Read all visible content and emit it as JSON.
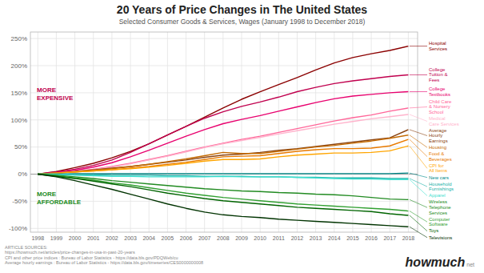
{
  "chart_data": {
    "type": "line",
    "title": "20 Years of Price Changes in The United States",
    "subtitle": "Selected Consumer Goods & Services, Wages (January 1998 to December 2018)",
    "x": [
      1998,
      1999,
      2000,
      2001,
      2002,
      2003,
      2004,
      2005,
      2006,
      2007,
      2008,
      2009,
      2010,
      2011,
      2012,
      2013,
      2014,
      2015,
      2016,
      2017,
      2018
    ],
    "xlim": [
      1997.6,
      2018.5
    ],
    "xticks": [
      1998,
      1999,
      2000,
      2001,
      2002,
      2003,
      2004,
      2005,
      2006,
      2007,
      2008,
      2009,
      2010,
      2011,
      2012,
      2013,
      2014,
      2015,
      2016,
      2017,
      2018
    ],
    "ylim": [
      -107,
      262
    ],
    "yticks": [
      {
        "value": -100,
        "label": "-100%"
      },
      {
        "value": -50,
        "label": "-50%"
      },
      {
        "value": 0,
        "label": "0%"
      },
      {
        "value": 50,
        "label": "50%"
      },
      {
        "value": 100,
        "label": "100%"
      },
      {
        "value": 150,
        "label": "150%"
      },
      {
        "value": 200,
        "label": "200%"
      },
      {
        "value": 250,
        "label": "250%"
      }
    ],
    "grid": true,
    "series": [
      {
        "name": "Hospital\nServices",
        "color": "#8B0000",
        "values": [
          0,
          5,
          12,
          20,
          30,
          42,
          56,
          72,
          88,
          105,
          122,
          138,
          152,
          165,
          178,
          192,
          205,
          215,
          222,
          228,
          236
        ]
      },
      {
        "name": "College\nTuition &\nFees",
        "color": "#c0004e",
        "values": [
          0,
          4,
          9,
          16,
          26,
          40,
          56,
          72,
          88,
          103,
          115,
          125,
          133,
          142,
          152,
          160,
          167,
          172,
          176,
          180,
          183
        ]
      },
      {
        "name": "College\nTextbooks",
        "color": "#e8006e",
        "values": [
          0,
          3,
          7,
          13,
          21,
          32,
          44,
          57,
          70,
          82,
          93,
          101,
          108,
          116,
          124,
          132,
          139,
          144,
          147,
          150,
          152
        ]
      },
      {
        "name": "Child Care\n& Nursery\nSchool",
        "color": "#ff6699",
        "values": [
          0,
          2,
          5,
          9,
          14,
          20,
          27,
          34,
          42,
          50,
          57,
          64,
          70,
          77,
          84,
          91,
          98,
          104,
          109,
          116,
          122
        ]
      },
      {
        "name": "Medical\nCare Services",
        "color": "#ffb3cc",
        "values": [
          0,
          2,
          5,
          8,
          13,
          19,
          26,
          33,
          41,
          49,
          56,
          62,
          68,
          74,
          80,
          86,
          92,
          97,
          102,
          106,
          110
        ]
      },
      {
        "name": "Average\nHourly\nEarnings",
        "color": "#8B4513",
        "values": [
          0,
          2,
          5,
          8,
          11,
          14,
          18,
          22,
          26,
          31,
          35,
          37,
          40,
          44,
          47,
          51,
          55,
          59,
          63,
          67,
          82
        ]
      },
      {
        "name": "Housing",
        "color": "#c46a00",
        "values": [
          0,
          2,
          4,
          7,
          10,
          14,
          18,
          23,
          28,
          34,
          40,
          38,
          38,
          42,
          46,
          50,
          53,
          57,
          61,
          66,
          72
        ]
      },
      {
        "name": "Food &\nBeverages",
        "color": "#e87a00",
        "values": [
          0,
          2,
          4,
          6,
          8,
          11,
          14,
          18,
          22,
          27,
          32,
          33,
          34,
          38,
          42,
          45,
          47,
          47,
          48,
          52,
          64
        ]
      },
      {
        "name": "CPI for\nAll Items",
        "color": "#ffa500",
        "values": [
          0,
          2,
          4,
          6,
          8,
          10,
          13,
          16,
          20,
          24,
          27,
          27,
          28,
          32,
          35,
          37,
          39,
          39,
          40,
          43,
          52
        ]
      },
      {
        "name": "New cars",
        "color": "#008b8b",
        "values": [
          0,
          0,
          1,
          1,
          1,
          1,
          1,
          1,
          1,
          1,
          1,
          1,
          1,
          1,
          1,
          1,
          1,
          1,
          1,
          1,
          2
        ]
      },
      {
        "name": "Household\nFurnishings",
        "color": "#20b2aa",
        "values": [
          0,
          0,
          -1,
          -1,
          -2,
          -2,
          -2,
          -3,
          -3,
          -4,
          -4,
          -4,
          -5,
          -5,
          -6,
          -6,
          -7,
          -7,
          -7,
          -8,
          -8
        ]
      },
      {
        "name": "Apparel",
        "color": "#40e0d0",
        "values": [
          0,
          -1,
          -2,
          -3,
          -4,
          -4,
          -5,
          -5,
          -5,
          -5,
          -4,
          -5,
          -5,
          -5,
          -6,
          -7,
          -8,
          -9,
          -9,
          -10,
          -10
        ]
      },
      {
        "name": "Wireless\nTelephone\nServices",
        "color": "#228b22",
        "values": [
          0,
          -2,
          -5,
          -8,
          -12,
          -15,
          -18,
          -21,
          -24,
          -27,
          -29,
          -31,
          -32,
          -34,
          -35,
          -37,
          -38,
          -40,
          -43,
          -46,
          -47
        ]
      },
      {
        "name": "Computer\nSoftware",
        "color": "#32a032",
        "values": [
          0,
          -3,
          -7,
          -11,
          -16,
          -20,
          -25,
          -30,
          -35,
          -39,
          -43,
          -46,
          -49,
          -52,
          -55,
          -57,
          -59,
          -61,
          -63,
          -65,
          -68
        ]
      },
      {
        "name": "Toys",
        "color": "#006400",
        "values": [
          0,
          -4,
          -8,
          -13,
          -18,
          -23,
          -29,
          -35,
          -40,
          -45,
          -49,
          -52,
          -55,
          -58,
          -61,
          -63,
          -65,
          -67,
          -69,
          -73,
          -76
        ]
      },
      {
        "name": "Televisions",
        "color": "#003300",
        "values": [
          0,
          -5,
          -12,
          -20,
          -28,
          -37,
          -46,
          -55,
          -63,
          -70,
          -75,
          -78,
          -80,
          -83,
          -85,
          -87,
          -89,
          -91,
          -93,
          -95,
          -97
        ]
      }
    ],
    "annotations": [
      {
        "text": "MORE\nEXPENSIVE",
        "color": "#c0004e"
      },
      {
        "text": "MORE\nAFFORDABLE",
        "color": "#228b22"
      }
    ],
    "footer": "ARTICLE SOURCES:\nhttps://howmuch.net/articles/price-changes-in-usa-in-past-20-years\nCPI and other price indices : Bureau of Labor Statistics - https://data.bls.gov/PDQWeb/cu\nAverage hourly earnings : Bureau of Labor Statistics - https://data.bls.gov/timeseries/CES0000000008",
    "logo": {
      "text": "howmuch",
      "suffix": "net"
    }
  }
}
